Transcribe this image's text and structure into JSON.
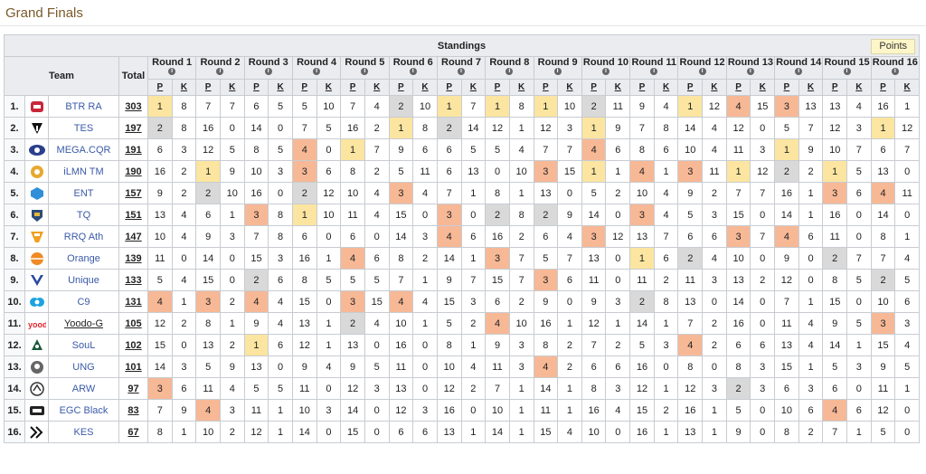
{
  "page_title": "Grand Finals",
  "table": {
    "caption": "Standings",
    "points_button": "Points",
    "header": {
      "team": "Team",
      "total": "Total",
      "p_label": "P",
      "k_label": "K",
      "info_icon": "i"
    },
    "rounds": [
      "Round 1",
      "Round 2",
      "Round 3",
      "Round 4",
      "Round 5",
      "Round 6",
      "Round 7",
      "Round 8",
      "Round 9",
      "Round 10",
      "Round 11",
      "Round 12",
      "Round 13",
      "Round 14",
      "Round 15",
      "Round 16"
    ],
    "rows": [
      {
        "pos": "1.",
        "team": "BTR RA",
        "total": "303",
        "logo": "btr-ra-logo",
        "cells": [
          [
            "1",
            "8"
          ],
          [
            "7",
            "7"
          ],
          [
            "6",
            "5"
          ],
          [
            "5",
            "10"
          ],
          [
            "7",
            "4"
          ],
          [
            "2",
            "10"
          ],
          [
            "1",
            "7"
          ],
          [
            "1",
            "8"
          ],
          [
            "1",
            "10"
          ],
          [
            "2",
            "11"
          ],
          [
            "9",
            "4"
          ],
          [
            "1",
            "12"
          ],
          [
            "4",
            "15"
          ],
          [
            "3",
            "13"
          ],
          [
            "13",
            "4"
          ],
          [
            "16",
            "1"
          ]
        ]
      },
      {
        "pos": "2.",
        "team": "TES",
        "total": "197",
        "logo": "tes-logo",
        "cells": [
          [
            "2",
            "8"
          ],
          [
            "16",
            "0"
          ],
          [
            "14",
            "0"
          ],
          [
            "7",
            "5"
          ],
          [
            "16",
            "2"
          ],
          [
            "1",
            "8"
          ],
          [
            "2",
            "14"
          ],
          [
            "12",
            "1"
          ],
          [
            "12",
            "3"
          ],
          [
            "1",
            "9"
          ],
          [
            "7",
            "8"
          ],
          [
            "14",
            "4"
          ],
          [
            "12",
            "0"
          ],
          [
            "5",
            "7"
          ],
          [
            "12",
            "3"
          ],
          [
            "1",
            "12"
          ]
        ]
      },
      {
        "pos": "3.",
        "team": "MEGA.CQR",
        "total": "191",
        "logo": "mega-cqr-logo",
        "cells": [
          [
            "6",
            "3"
          ],
          [
            "12",
            "5"
          ],
          [
            "8",
            "5"
          ],
          [
            "4",
            "0"
          ],
          [
            "1",
            "7"
          ],
          [
            "9",
            "6"
          ],
          [
            "6",
            "5"
          ],
          [
            "5",
            "4"
          ],
          [
            "7",
            "7"
          ],
          [
            "4",
            "6"
          ],
          [
            "8",
            "6"
          ],
          [
            "10",
            "4"
          ],
          [
            "11",
            "3"
          ],
          [
            "1",
            "9"
          ],
          [
            "10",
            "7"
          ],
          [
            "6",
            "7"
          ]
        ]
      },
      {
        "pos": "4.",
        "team": "iLMN TM",
        "total": "190",
        "logo": "ilmn-tm-logo",
        "cells": [
          [
            "16",
            "2"
          ],
          [
            "1",
            "9"
          ],
          [
            "10",
            "3"
          ],
          [
            "3",
            "6"
          ],
          [
            "8",
            "2"
          ],
          [
            "5",
            "11"
          ],
          [
            "6",
            "13"
          ],
          [
            "0",
            "10"
          ],
          [
            "3",
            "15"
          ],
          [
            "1",
            "1"
          ],
          [
            "4",
            "1"
          ],
          [
            "3",
            "11"
          ],
          [
            "1",
            "12"
          ],
          [
            "2",
            "2"
          ],
          [
            "1",
            "5"
          ],
          [
            "13",
            "0"
          ]
        ]
      },
      {
        "pos": "5.",
        "team": "ENT",
        "total": "157",
        "logo": "ent-logo",
        "cells": [
          [
            "9",
            "2"
          ],
          [
            "2",
            "10"
          ],
          [
            "16",
            "0"
          ],
          [
            "2",
            "12"
          ],
          [
            "10",
            "4"
          ],
          [
            "3",
            "4"
          ],
          [
            "7",
            "1"
          ],
          [
            "8",
            "1"
          ],
          [
            "13",
            "0"
          ],
          [
            "5",
            "2"
          ],
          [
            "10",
            "4"
          ],
          [
            "9",
            "2"
          ],
          [
            "7",
            "7"
          ],
          [
            "16",
            "1"
          ],
          [
            "3",
            "6"
          ],
          [
            "4",
            "11"
          ]
        ]
      },
      {
        "pos": "6.",
        "team": "TQ",
        "total": "151",
        "logo": "tq-logo",
        "cells": [
          [
            "13",
            "4"
          ],
          [
            "6",
            "1"
          ],
          [
            "3",
            "8"
          ],
          [
            "1",
            "10"
          ],
          [
            "11",
            "4"
          ],
          [
            "15",
            "0"
          ],
          [
            "3",
            "0"
          ],
          [
            "2",
            "8"
          ],
          [
            "2",
            "9"
          ],
          [
            "14",
            "0"
          ],
          [
            "3",
            "4"
          ],
          [
            "5",
            "3"
          ],
          [
            "15",
            "0"
          ],
          [
            "14",
            "1"
          ],
          [
            "16",
            "0"
          ],
          [
            "14",
            "0"
          ]
        ]
      },
      {
        "pos": "7.",
        "team": "RRQ Ath",
        "total": "147",
        "logo": "rrq-ath-logo",
        "cells": [
          [
            "10",
            "4"
          ],
          [
            "9",
            "3"
          ],
          [
            "7",
            "8"
          ],
          [
            "6",
            "0"
          ],
          [
            "6",
            "0"
          ],
          [
            "14",
            "3"
          ],
          [
            "4",
            "6"
          ],
          [
            "16",
            "2"
          ],
          [
            "6",
            "4"
          ],
          [
            "3",
            "12"
          ],
          [
            "13",
            "7"
          ],
          [
            "6",
            "6"
          ],
          [
            "3",
            "7"
          ],
          [
            "4",
            "6"
          ],
          [
            "11",
            "0"
          ],
          [
            "8",
            "1"
          ]
        ]
      },
      {
        "pos": "8.",
        "team": "Orange",
        "total": "139",
        "logo": "orange-logo",
        "cells": [
          [
            "11",
            "0"
          ],
          [
            "14",
            "0"
          ],
          [
            "15",
            "3"
          ],
          [
            "16",
            "1"
          ],
          [
            "4",
            "6"
          ],
          [
            "8",
            "2"
          ],
          [
            "14",
            "1"
          ],
          [
            "3",
            "7"
          ],
          [
            "5",
            "7"
          ],
          [
            "13",
            "0"
          ],
          [
            "1",
            "6"
          ],
          [
            "2",
            "4"
          ],
          [
            "10",
            "0"
          ],
          [
            "9",
            "0"
          ],
          [
            "2",
            "7"
          ],
          [
            "7",
            "4"
          ]
        ]
      },
      {
        "pos": "9.",
        "team": "Unique",
        "total": "133",
        "logo": "unique-logo",
        "cells": [
          [
            "5",
            "4"
          ],
          [
            "15",
            "0"
          ],
          [
            "2",
            "6"
          ],
          [
            "8",
            "5"
          ],
          [
            "5",
            "5"
          ],
          [
            "7",
            "1"
          ],
          [
            "9",
            "7"
          ],
          [
            "15",
            "7"
          ],
          [
            "3",
            "6"
          ],
          [
            "11",
            "0"
          ],
          [
            "11",
            "2"
          ],
          [
            "11",
            "3"
          ],
          [
            "13",
            "2"
          ],
          [
            "12",
            "0"
          ],
          [
            "8",
            "5"
          ],
          [
            "2",
            "5"
          ]
        ]
      },
      {
        "pos": "10.",
        "team": "C9",
        "total": "131",
        "logo": "c9-logo",
        "cells": [
          [
            "4",
            "1"
          ],
          [
            "3",
            "2"
          ],
          [
            "4",
            "4"
          ],
          [
            "15",
            "0"
          ],
          [
            "3",
            "15"
          ],
          [
            "4",
            "4"
          ],
          [
            "15",
            "3"
          ],
          [
            "6",
            "2"
          ],
          [
            "9",
            "0"
          ],
          [
            "9",
            "3"
          ],
          [
            "2",
            "8"
          ],
          [
            "13",
            "0"
          ],
          [
            "14",
            "0"
          ],
          [
            "7",
            "1"
          ],
          [
            "15",
            "0"
          ],
          [
            "10",
            "6"
          ]
        ]
      },
      {
        "pos": "11.",
        "team": "Yoodo-G",
        "total": "105",
        "logo": "yoodo-g-logo",
        "underline": true,
        "cells": [
          [
            "12",
            "2"
          ],
          [
            "8",
            "1"
          ],
          [
            "9",
            "4"
          ],
          [
            "13",
            "1"
          ],
          [
            "2",
            "4"
          ],
          [
            "10",
            "1"
          ],
          [
            "5",
            "2"
          ],
          [
            "4",
            "10"
          ],
          [
            "16",
            "1"
          ],
          [
            "12",
            "1"
          ],
          [
            "14",
            "1"
          ],
          [
            "7",
            "2"
          ],
          [
            "16",
            "0"
          ],
          [
            "11",
            "4"
          ],
          [
            "9",
            "5"
          ],
          [
            "3",
            "3"
          ]
        ]
      },
      {
        "pos": "12.",
        "team": "SouL",
        "total": "102",
        "logo": "soul-logo",
        "cells": [
          [
            "15",
            "0"
          ],
          [
            "13",
            "2"
          ],
          [
            "1",
            "6"
          ],
          [
            "12",
            "1"
          ],
          [
            "13",
            "0"
          ],
          [
            "16",
            "0"
          ],
          [
            "8",
            "1"
          ],
          [
            "9",
            "3"
          ],
          [
            "8",
            "2"
          ],
          [
            "7",
            "2"
          ],
          [
            "5",
            "3"
          ],
          [
            "4",
            "2"
          ],
          [
            "6",
            "6"
          ],
          [
            "13",
            "4"
          ],
          [
            "14",
            "1"
          ],
          [
            "15",
            "4"
          ]
        ]
      },
      {
        "pos": "13.",
        "team": "UNG",
        "total": "101",
        "logo": "ung-logo",
        "cells": [
          [
            "14",
            "3"
          ],
          [
            "5",
            "9"
          ],
          [
            "13",
            "0"
          ],
          [
            "9",
            "4"
          ],
          [
            "9",
            "5"
          ],
          [
            "11",
            "0"
          ],
          [
            "10",
            "4"
          ],
          [
            "11",
            "3"
          ],
          [
            "4",
            "2"
          ],
          [
            "6",
            "6"
          ],
          [
            "16",
            "0"
          ],
          [
            "8",
            "0"
          ],
          [
            "8",
            "3"
          ],
          [
            "15",
            "1"
          ],
          [
            "5",
            "3"
          ],
          [
            "9",
            "5"
          ]
        ]
      },
      {
        "pos": "14.",
        "team": "ARW",
        "total": "97",
        "logo": "arw-logo",
        "cells": [
          [
            "3",
            "6"
          ],
          [
            "11",
            "4"
          ],
          [
            "5",
            "5"
          ],
          [
            "11",
            "0"
          ],
          [
            "12",
            "3"
          ],
          [
            "13",
            "0"
          ],
          [
            "12",
            "2"
          ],
          [
            "7",
            "1"
          ],
          [
            "14",
            "1"
          ],
          [
            "8",
            "3"
          ],
          [
            "12",
            "1"
          ],
          [
            "12",
            "3"
          ],
          [
            "2",
            "3"
          ],
          [
            "6",
            "3"
          ],
          [
            "6",
            "0"
          ],
          [
            "11",
            "1"
          ]
        ]
      },
      {
        "pos": "15.",
        "team": "EGC Black",
        "total": "83",
        "logo": "egc-black-logo",
        "cells": [
          [
            "7",
            "9"
          ],
          [
            "4",
            "3"
          ],
          [
            "11",
            "1"
          ],
          [
            "10",
            "3"
          ],
          [
            "14",
            "0"
          ],
          [
            "12",
            "3"
          ],
          [
            "16",
            "0"
          ],
          [
            "10",
            "1"
          ],
          [
            "11",
            "1"
          ],
          [
            "16",
            "4"
          ],
          [
            "15",
            "2"
          ],
          [
            "16",
            "1"
          ],
          [
            "5",
            "0"
          ],
          [
            "10",
            "6"
          ],
          [
            "4",
            "6"
          ],
          [
            "12",
            "0"
          ]
        ]
      },
      {
        "pos": "16.",
        "team": "KES",
        "total": "67",
        "logo": "kes-logo",
        "cells": [
          [
            "8",
            "1"
          ],
          [
            "10",
            "2"
          ],
          [
            "12",
            "1"
          ],
          [
            "14",
            "0"
          ],
          [
            "15",
            "0"
          ],
          [
            "6",
            "6"
          ],
          [
            "13",
            "1"
          ],
          [
            "14",
            "1"
          ],
          [
            "15",
            "4"
          ],
          [
            "10",
            "0"
          ],
          [
            "16",
            "1"
          ],
          [
            "13",
            "1"
          ],
          [
            "9",
            "0"
          ],
          [
            "8",
            "2"
          ],
          [
            "7",
            "1"
          ],
          [
            "5",
            "0"
          ]
        ]
      }
    ],
    "placement_colors": {
      "first": "#fbe5a0",
      "second": "#d9d9d9",
      "third_fourth": "#f7b896"
    }
  }
}
